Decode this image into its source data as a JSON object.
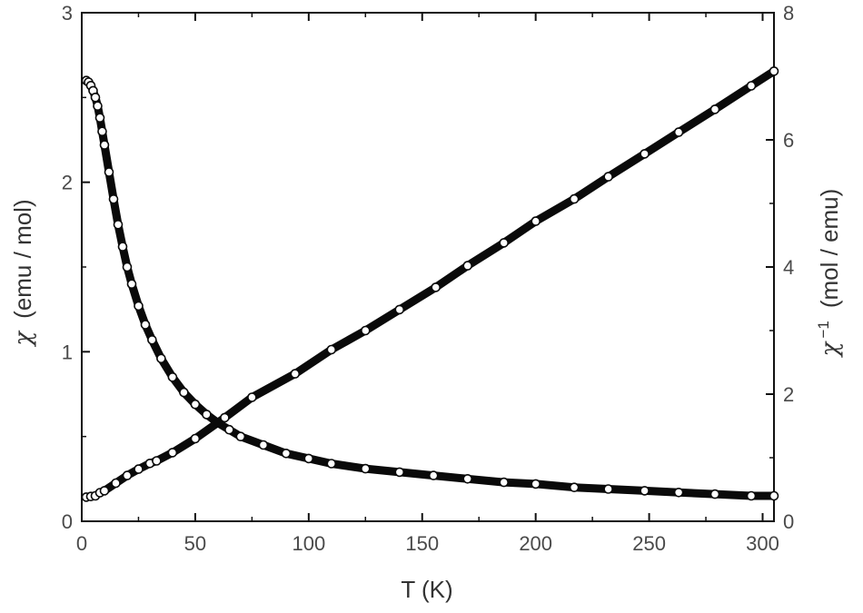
{
  "chart_data": {
    "type": "scatter",
    "title": "",
    "x_axis": {
      "label": "T (K)",
      "range": [
        0,
        305
      ],
      "ticks": [
        0,
        50,
        100,
        150,
        200,
        250,
        300
      ]
    },
    "y_axis_left": {
      "symbol": "χ",
      "unit": "(emu / mol)",
      "range": [
        0,
        3
      ],
      "ticks": [
        0,
        1,
        2,
        3
      ]
    },
    "y_axis_right": {
      "symbol": "χ",
      "superscript": "−1",
      "unit": "(mol / emu)",
      "range": [
        0,
        8
      ],
      "ticks": [
        0,
        2,
        4,
        6,
        8
      ]
    },
    "series": [
      {
        "axis": "left",
        "x": [
          2,
          3,
          4,
          5,
          6,
          7,
          8,
          9,
          10,
          12,
          14,
          16,
          18,
          20,
          22,
          25,
          28,
          31,
          35,
          40,
          45,
          50,
          55,
          60,
          65,
          70,
          80,
          90,
          100,
          110,
          125,
          140,
          155,
          170,
          186,
          200,
          217,
          232,
          248,
          263,
          279,
          295,
          305
        ],
        "y": [
          2.6,
          2.59,
          2.57,
          2.54,
          2.5,
          2.45,
          2.38,
          2.3,
          2.22,
          2.06,
          1.9,
          1.75,
          1.62,
          1.5,
          1.4,
          1.27,
          1.16,
          1.07,
          0.96,
          0.85,
          0.76,
          0.69,
          0.63,
          0.58,
          0.54,
          0.5,
          0.45,
          0.4,
          0.37,
          0.34,
          0.31,
          0.29,
          0.27,
          0.25,
          0.23,
          0.22,
          0.2,
          0.19,
          0.18,
          0.17,
          0.16,
          0.15,
          0.15
        ]
      },
      {
        "axis": "right",
        "x": [
          2,
          4,
          6,
          8,
          10,
          15,
          20,
          25,
          30,
          33,
          40,
          50,
          63,
          75,
          94,
          110,
          125,
          140,
          156,
          170,
          186,
          200,
          217,
          232,
          248,
          263,
          279,
          295,
          305
        ],
        "y": [
          0.38,
          0.39,
          0.4,
          0.45,
          0.48,
          0.6,
          0.72,
          0.82,
          0.91,
          0.95,
          1.08,
          1.3,
          1.63,
          1.95,
          2.32,
          2.7,
          3.0,
          3.33,
          3.68,
          4.02,
          4.38,
          4.72,
          5.07,
          5.42,
          5.78,
          6.12,
          6.48,
          6.85,
          7.08
        ]
      }
    ],
    "legend": "none",
    "grid": false,
    "marker": "open circle, dense"
  }
}
